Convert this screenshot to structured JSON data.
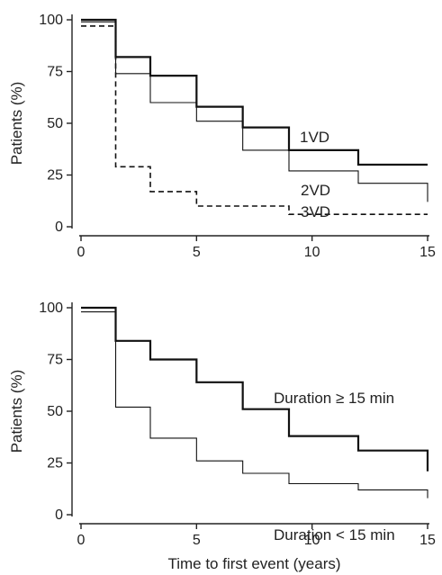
{
  "chart_data": [
    {
      "type": "line",
      "step": true,
      "title": "",
      "xlabel": "",
      "ylabel": "Patients (%)",
      "xlim": [
        0,
        15
      ],
      "ylim": [
        0,
        100
      ],
      "xticks": [
        "0",
        "5",
        "10",
        "15"
      ],
      "yticks": [
        "0",
        "25",
        "50",
        "75",
        "100"
      ],
      "series": [
        {
          "name": "1VD",
          "style": "solid-thick",
          "color": "#111111",
          "x": [
            0,
            1.5,
            3,
            5,
            7,
            9,
            12,
            15
          ],
          "y": [
            100,
            82,
            73,
            58,
            48,
            37,
            30,
            30
          ]
        },
        {
          "name": "2VD",
          "style": "solid-thin",
          "color": "#111111",
          "x": [
            0,
            1.5,
            3,
            5,
            7,
            9,
            12,
            15
          ],
          "y": [
            99,
            74,
            60,
            51,
            37,
            27,
            21,
            12
          ]
        },
        {
          "name": "3VD",
          "style": "dashed",
          "color": "#111111",
          "x": [
            0,
            1.5,
            3,
            5,
            9,
            15
          ],
          "y": [
            97,
            29,
            17,
            10,
            6,
            6
          ]
        }
      ]
    },
    {
      "type": "line",
      "step": true,
      "title": "",
      "xlabel": "Time to first event (years)",
      "ylabel": "Patients (%)",
      "xlim": [
        0,
        15
      ],
      "ylim": [
        0,
        100
      ],
      "xticks": [
        "0",
        "5",
        "10",
        "15"
      ],
      "yticks": [
        "0",
        "25",
        "50",
        "75",
        "100"
      ],
      "series": [
        {
          "name": "Duration ≥ 15 min",
          "style": "solid-thick",
          "color": "#111111",
          "x": [
            0,
            1.5,
            3,
            5,
            7,
            9,
            12,
            15
          ],
          "y": [
            100,
            84,
            75,
            64,
            51,
            38,
            31,
            21
          ]
        },
        {
          "name": "Duration < 15 min",
          "style": "solid-thin",
          "color": "#111111",
          "x": [
            0,
            1.5,
            3,
            5,
            7,
            9,
            12,
            15
          ],
          "y": [
            98,
            52,
            37,
            26,
            20,
            15,
            12,
            8
          ]
        }
      ]
    }
  ]
}
